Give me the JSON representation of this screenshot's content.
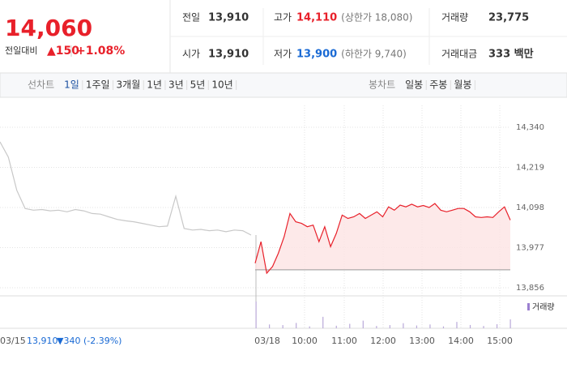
{
  "quote": {
    "price": "14,060",
    "change_label": "전일대비",
    "change": "▲150",
    "change_pct": "+1.08%"
  },
  "stats": [
    {
      "label": "전일",
      "value": "13,910"
    },
    {
      "label": "고가",
      "value": "14,110",
      "note": "(상한가 18,080)"
    },
    {
      "label": "거래량",
      "value": "23,775"
    },
    {
      "label": "시가",
      "value": "13,910"
    },
    {
      "label": "저가",
      "value": "13,900",
      "note": "(하한가 9,740)"
    },
    {
      "label": "거래대금",
      "value": "333 백만"
    }
  ],
  "line_tabs": {
    "label": "선차트",
    "items": [
      "1일",
      "1주일",
      "3개월",
      "1년",
      "3년",
      "5년",
      "10년"
    ]
  },
  "candle_tabs": {
    "label": "봉차트",
    "items": [
      "일봉",
      "주봉",
      "월봉"
    ]
  },
  "chart": {
    "type": "line",
    "ylim": [
      13856,
      14340
    ],
    "yticks": [
      {
        "value": 14340,
        "label": "14,340"
      },
      {
        "value": 14219,
        "label": "14,219"
      },
      {
        "value": 14098,
        "label": "14,098"
      },
      {
        "value": 13977,
        "label": "13,977"
      },
      {
        "value": 13856,
        "label": "13,856"
      }
    ],
    "prev_close": 13910,
    "series": [
      {
        "color": "#c8c8c8",
        "values": [
          14296,
          14250,
          14150,
          14095,
          14090,
          14092,
          14088,
          14090,
          14085,
          14092,
          14088,
          14080,
          14078,
          14070,
          14062,
          14058,
          14055,
          14050,
          14045,
          14040,
          14042,
          14132,
          14035,
          14030,
          14032,
          14028,
          14030,
          14025,
          14030,
          14028,
          14015
        ]
      },
      {
        "color": "#e8202a",
        "values": [
          13930,
          13995,
          13900,
          13920,
          13960,
          14010,
          14080,
          14055,
          14050,
          14040,
          14045,
          13995,
          14040,
          13980,
          14020,
          14075,
          14065,
          14070,
          14080,
          14065,
          14075,
          14085,
          14070,
          14100,
          14090,
          14105,
          14100,
          14108,
          14100,
          14104,
          14098,
          14110,
          14090,
          14085,
          14090,
          14095,
          14095,
          14085,
          14070,
          14068,
          14070,
          14068,
          14085,
          14100,
          14060
        ]
      }
    ],
    "volume": {
      "label": "거래량",
      "color": "#b9a9d9",
      "values": [
        2100,
        300,
        250,
        420,
        150,
        900,
        200,
        350,
        600,
        180,
        250,
        400,
        220,
        300,
        150,
        500,
        260,
        180,
        320,
        700
      ]
    },
    "x_labels": [
      "03/15",
      "03/18",
      "10:00",
      "11:00",
      "12:00",
      "13:00",
      "14:00",
      "15:00"
    ],
    "footer": {
      "prev": "13,910",
      "change": "▼340 (-2.39%)"
    }
  }
}
